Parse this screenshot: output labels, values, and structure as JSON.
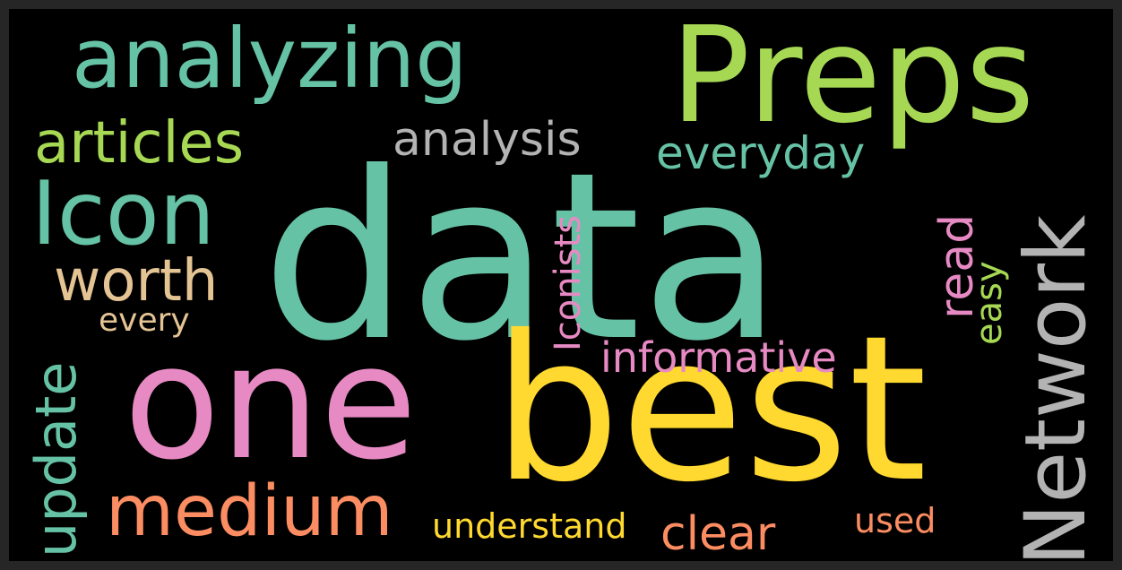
{
  "words": [
    {
      "id": "data",
      "text": "data",
      "color": "#66c2a5"
    },
    {
      "id": "one",
      "text": "one",
      "color": "#e78ac3"
    },
    {
      "id": "best",
      "text": "best",
      "color": "#ffd92f"
    },
    {
      "id": "Preps",
      "text": "Preps",
      "color": "#a6d854"
    },
    {
      "id": "analyzing",
      "text": "analyzing",
      "color": "#66c2a5"
    },
    {
      "id": "Network",
      "text": "Network",
      "color": "#b3b3b3"
    },
    {
      "id": "Icon",
      "text": "Icon",
      "color": "#66c2a5"
    },
    {
      "id": "medium",
      "text": "medium",
      "color": "#fc8d62"
    },
    {
      "id": "articles",
      "text": "articles",
      "color": "#a6d854"
    },
    {
      "id": "worth",
      "text": "worth",
      "color": "#e5c494"
    },
    {
      "id": "update",
      "text": "update",
      "color": "#66c2a5"
    },
    {
      "id": "analysis",
      "text": "analysis",
      "color": "#b3b3b3"
    },
    {
      "id": "everyday",
      "text": "everyday",
      "color": "#66c2a5"
    },
    {
      "id": "read",
      "text": "read",
      "color": "#e78ac3"
    },
    {
      "id": "informative",
      "text": "informative",
      "color": "#e78ac3"
    },
    {
      "id": "clear",
      "text": "clear",
      "color": "#fc8d62"
    },
    {
      "id": "understand",
      "text": "understand",
      "color": "#ffd92f"
    },
    {
      "id": "Iconists",
      "text": "Iconists",
      "color": "#e78ac3"
    },
    {
      "id": "easy",
      "text": "easy",
      "color": "#a6d854"
    },
    {
      "id": "every",
      "text": "every",
      "color": "#e5c494"
    },
    {
      "id": "used",
      "text": "used",
      "color": "#fc8d62"
    }
  ]
}
